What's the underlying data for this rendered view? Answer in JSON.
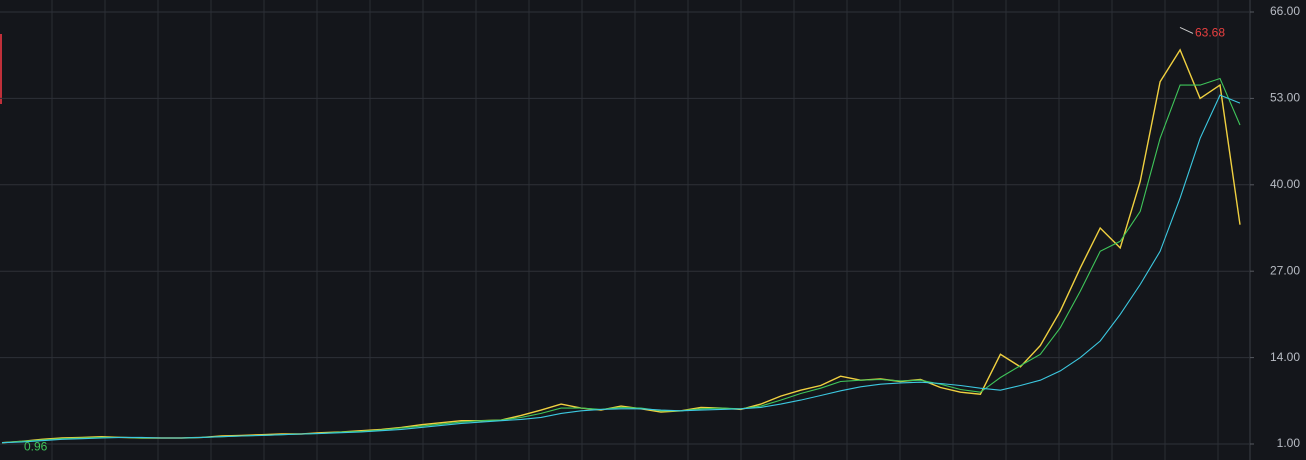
{
  "chart_data": {
    "type": "line",
    "ylim": [
      1,
      66
    ],
    "yticks": [
      {
        "value": 1,
        "label": "1.00"
      },
      {
        "value": 14,
        "label": "14.00"
      },
      {
        "value": 27,
        "label": "27.00"
      },
      {
        "value": 40,
        "label": "40.00"
      },
      {
        "value": 53,
        "label": "53.00"
      },
      {
        "value": 66,
        "label": "66.00"
      }
    ],
    "grid": true,
    "series": [
      {
        "color": "#f0d040",
        "values": [
          1.2,
          1.4,
          1.7,
          1.9,
          2.0,
          2.1,
          2.0,
          1.9,
          1.9,
          1.9,
          2.0,
          2.2,
          2.3,
          2.4,
          2.5,
          2.5,
          2.7,
          2.8,
          3.0,
          3.2,
          3.5,
          3.9,
          4.2,
          4.5,
          4.5,
          4.6,
          5.3,
          6.1,
          7.0,
          6.4,
          6.1,
          6.7,
          6.3,
          5.8,
          6.0,
          6.5,
          6.4,
          6.2,
          7.0,
          8.2,
          9.1,
          9.8,
          11.2,
          10.6,
          10.8,
          10.4,
          10.7,
          9.5,
          8.8,
          8.5,
          14.5,
          12.6,
          15.8,
          21.0,
          27.5,
          33.5,
          30.5,
          40.5,
          55.5,
          60.3,
          53.0,
          55.0,
          34.0
        ]
      },
      {
        "color": "#3fc55a",
        "values": [
          1.2,
          1.4,
          1.6,
          1.8,
          1.9,
          2.0,
          2.0,
          1.9,
          1.9,
          1.9,
          2.0,
          2.1,
          2.2,
          2.3,
          2.4,
          2.5,
          2.6,
          2.8,
          2.9,
          3.1,
          3.4,
          3.7,
          4.0,
          4.3,
          4.5,
          4.6,
          5.0,
          5.6,
          6.4,
          6.4,
          6.2,
          6.5,
          6.4,
          6.0,
          6.0,
          6.3,
          6.4,
          6.3,
          6.7,
          7.6,
          8.6,
          9.4,
          10.4,
          10.6,
          10.7,
          10.5,
          10.6,
          10.0,
          9.2,
          8.8,
          11.0,
          12.8,
          14.5,
          18.5,
          24.0,
          30.0,
          31.5,
          36.0,
          47.0,
          55.0,
          55.0,
          56.0,
          49.0
        ]
      },
      {
        "color": "#3cc8e0",
        "values": [
          1.2,
          1.3,
          1.5,
          1.7,
          1.8,
          1.9,
          2.0,
          2.0,
          1.9,
          1.9,
          2.0,
          2.1,
          2.2,
          2.3,
          2.4,
          2.5,
          2.6,
          2.7,
          2.8,
          3.0,
          3.2,
          3.5,
          3.8,
          4.1,
          4.3,
          4.5,
          4.7,
          5.0,
          5.6,
          6.0,
          6.2,
          6.3,
          6.3,
          6.1,
          6.0,
          6.1,
          6.2,
          6.3,
          6.5,
          7.0,
          7.6,
          8.3,
          9.0,
          9.6,
          10.0,
          10.2,
          10.3,
          10.1,
          9.8,
          9.4,
          9.1,
          9.8,
          10.6,
          12.0,
          14.0,
          16.5,
          20.5,
          25.0,
          30.0,
          38.0,
          47.0,
          53.5,
          52.3
        ]
      }
    ],
    "annotations": [
      {
        "label": "63.68",
        "value": 63.68,
        "color": "#e84040"
      },
      {
        "label": "0.96",
        "value": 0.96,
        "color": "#3fc55a"
      }
    ]
  }
}
